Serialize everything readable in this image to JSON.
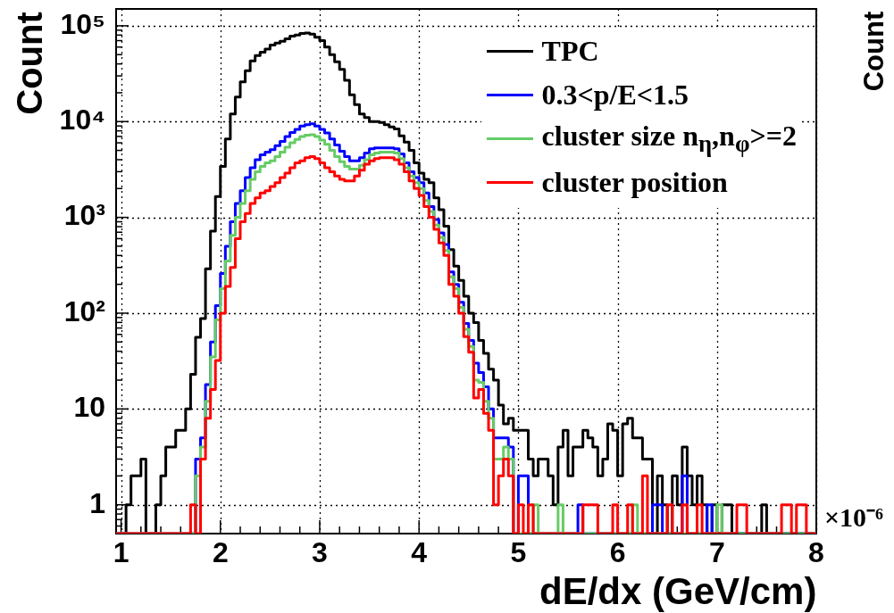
{
  "chart_data": {
    "type": "histogram",
    "xlabel": "dE/dx (GeV/cm)",
    "ylabel": "Count",
    "bins": [
      0.95,
      1.0,
      1.05,
      1.1,
      1.15,
      1.2,
      1.25,
      1.3,
      1.35,
      1.4,
      1.45,
      1.5,
      1.55,
      1.6,
      1.65,
      1.7,
      1.75,
      1.8,
      1.85,
      1.9,
      1.95,
      2.0,
      2.05,
      2.1,
      2.15,
      2.2,
      2.25,
      2.3,
      2.35,
      2.4,
      2.45,
      2.5,
      2.55,
      2.6,
      2.65,
      2.7,
      2.75,
      2.8,
      2.85,
      2.9,
      2.95,
      3.0,
      3.05,
      3.1,
      3.15,
      3.2,
      3.25,
      3.3,
      3.35,
      3.4,
      3.45,
      3.5,
      3.55,
      3.6,
      3.65,
      3.7,
      3.75,
      3.8,
      3.85,
      3.9,
      3.95,
      4.0,
      4.05,
      4.1,
      4.15,
      4.2,
      4.25,
      4.3,
      4.35,
      4.4,
      4.45,
      4.5,
      4.55,
      4.6,
      4.65,
      4.7,
      4.75,
      4.8,
      4.85,
      4.9,
      4.95,
      5.0,
      5.05,
      5.1,
      5.15,
      5.2,
      5.25,
      5.3,
      5.35,
      5.4,
      5.45,
      5.5,
      5.55,
      5.6,
      5.65,
      5.7,
      5.75,
      5.8,
      5.85,
      5.9,
      5.95,
      6.0,
      6.05,
      6.1,
      6.15,
      6.2,
      6.25,
      6.3,
      6.35,
      6.4,
      6.45,
      6.5,
      6.55,
      6.6,
      6.65,
      6.7,
      6.75,
      6.8,
      6.85,
      6.9,
      6.95,
      7.0,
      7.05,
      7.1,
      7.15,
      7.2,
      7.25,
      7.3,
      7.35,
      7.4,
      7.45,
      7.5,
      7.55,
      7.6,
      7.65,
      7.7,
      7.75,
      7.8,
      7.85,
      7.9,
      7.95,
      8.0
    ],
    "series": [
      {
        "name": "TPC",
        "color": "#000000",
        "values": [
          null,
          null,
          1,
          2,
          2,
          3,
          null,
          null,
          1,
          2,
          4,
          4,
          6,
          6,
          10,
          23,
          56,
          88,
          290,
          720,
          1650,
          3400,
          6600,
          12000,
          18000,
          26000,
          34000,
          43000,
          49000,
          53000,
          57000,
          63000,
          66000,
          69000,
          73000,
          78000,
          80000,
          83000,
          84000,
          82000,
          76000,
          70000,
          60000,
          50000,
          42000,
          35000,
          27000,
          19000,
          15000,
          12000,
          11000,
          10000,
          10000,
          9800,
          9300,
          8800,
          8400,
          7100,
          6100,
          5000,
          3700,
          2900,
          2500,
          2300,
          1600,
          1200,
          810,
          460,
          310,
          220,
          150,
          100,
          80,
          52,
          38,
          26,
          20,
          11,
          7,
          8,
          6,
          6,
          6,
          3,
          2,
          3,
          3,
          2,
          1,
          4,
          6,
          2,
          4,
          4,
          6,
          5,
          4,
          2,
          3,
          7,
          6,
          2,
          7,
          8,
          5,
          5,
          3,
          3,
          null,
          2,
          1,
          null,
          2,
          1,
          4,
          2,
          1,
          2,
          1,
          null,
          1,
          null,
          1,
          1,
          null,
          null,
          null,
          null,
          null,
          null,
          1,
          null,
          null,
          null,
          null,
          null,
          null,
          null,
          null,
          null,
          null
        ]
      },
      {
        "name": "0.3<p/E<1.5",
        "color": "#0000ff",
        "values": [
          null,
          null,
          null,
          null,
          null,
          null,
          null,
          null,
          null,
          null,
          null,
          null,
          null,
          null,
          null,
          null,
          3,
          5,
          18,
          50,
          120,
          260,
          500,
          900,
          1400,
          1900,
          2600,
          3300,
          4000,
          4500,
          4800,
          5100,
          5600,
          6200,
          7000,
          7700,
          8300,
          9000,
          9300,
          9500,
          9000,
          8300,
          7600,
          6600,
          5700,
          4900,
          4300,
          3900,
          3900,
          4200,
          4700,
          5200,
          5300,
          5300,
          5300,
          5300,
          5200,
          4600,
          3700,
          3000,
          2600,
          2300,
          1800,
          1300,
          950,
          690,
          520,
          270,
          200,
          130,
          78,
          52,
          30,
          24,
          17,
          10,
          5,
          5,
          5,
          4,
          null,
          2,
          2,
          null,
          null,
          null,
          null,
          null,
          null,
          null,
          null,
          null,
          null,
          1,
          null,
          null,
          null,
          null,
          null,
          null,
          null,
          null,
          null,
          null,
          null,
          null,
          null,
          null,
          1,
          1,
          null,
          null,
          null,
          null,
          2,
          null,
          null,
          null,
          null,
          1,
          null,
          null,
          null,
          null,
          null,
          null,
          null,
          null,
          null,
          null,
          null,
          null,
          null,
          null,
          null,
          null,
          null,
          null,
          null,
          null,
          null
        ]
      },
      {
        "name": "cluster size n$_{η}$,n$_{φ}$>=2",
        "color": "#66cc66",
        "values": [
          null,
          null,
          null,
          null,
          null,
          null,
          null,
          null,
          null,
          null,
          null,
          null,
          null,
          null,
          null,
          null,
          2,
          4,
          12,
          35,
          85,
          180,
          350,
          650,
          1000,
          1400,
          1900,
          2500,
          3000,
          3400,
          3700,
          3900,
          4300,
          4800,
          5400,
          6000,
          6500,
          7000,
          7200,
          7300,
          7000,
          6400,
          5800,
          5000,
          4300,
          3800,
          3400,
          3200,
          3200,
          3500,
          4000,
          4500,
          4700,
          4800,
          4800,
          4800,
          4700,
          4100,
          3300,
          2700,
          2300,
          2000,
          1500,
          1150,
          830,
          620,
          450,
          240,
          180,
          115,
          68,
          45,
          20,
          19,
          12,
          8,
          3,
          3,
          4,
          3,
          null,
          null,
          null,
          null,
          1,
          null,
          null,
          null,
          null,
          1,
          null,
          null,
          null,
          null,
          null,
          null,
          null,
          null,
          null,
          null,
          null,
          null,
          null,
          null,
          1,
          null,
          null,
          null,
          null,
          null,
          null,
          null,
          null,
          null,
          null,
          null,
          null,
          null,
          null,
          null,
          null,
          1,
          null,
          null,
          null,
          null,
          null,
          null,
          null,
          null,
          null,
          null,
          null,
          null,
          null,
          null,
          null,
          null,
          null,
          null,
          null
        ]
      },
      {
        "name": "cluster position",
        "color": "#ff0000",
        "values": [
          null,
          null,
          null,
          null,
          null,
          null,
          null,
          null,
          null,
          null,
          null,
          null,
          null,
          null,
          null,
          1,
          null,
          3,
          8,
          16,
          32,
          100,
          190,
          300,
          600,
          900,
          1100,
          1400,
          1600,
          1800,
          1900,
          2100,
          2300,
          2600,
          2900,
          3300,
          3700,
          3900,
          4200,
          4300,
          4100,
          3700,
          3300,
          3000,
          2700,
          2500,
          2400,
          2400,
          2700,
          3100,
          3600,
          3900,
          4100,
          4200,
          4200,
          4200,
          4000,
          3600,
          3000,
          2400,
          2000,
          1700,
          1300,
          1000,
          750,
          540,
          400,
          200,
          150,
          100,
          57,
          39,
          13,
          16,
          9,
          6,
          1,
          2,
          3,
          2,
          null,
          1,
          null,
          1,
          null,
          null,
          null,
          null,
          null,
          null,
          null,
          null,
          null,
          null,
          1,
          1,
          1,
          null,
          null,
          null,
          1,
          null,
          null,
          1,
          null,
          null,
          2,
          null,
          null,
          null,
          null,
          1,
          null,
          null,
          1,
          null,
          null,
          1,
          null,
          null,
          null,
          null,
          null,
          null,
          null,
          1,
          1,
          null,
          null,
          null,
          null,
          null,
          null,
          null,
          1,
          1,
          null,
          1,
          1,
          null,
          null
        ]
      }
    ],
    "xlim": [
      0.95,
      8.0
    ],
    "ylim": [
      0.5,
      150000
    ],
    "xticks": [
      1,
      {
        "value": 1.2,
        "label": null
      },
      {
        "value": 1.4,
        "label": null
      },
      {
        "value": 1.6,
        "label": null
      },
      {
        "value": 1.8,
        "label": null
      },
      2,
      {
        "value": 2.2,
        "label": null
      },
      {
        "value": 2.4,
        "label": null
      },
      {
        "value": 2.6,
        "label": null
      },
      {
        "value": 2.8,
        "label": null
      },
      3,
      {
        "value": 3.2,
        "label": null
      },
      {
        "value": 3.4,
        "label": null
      },
      {
        "value": 3.6,
        "label": null
      },
      {
        "value": 3.8,
        "label": null
      },
      4,
      {
        "value": 4.2,
        "label": null
      },
      {
        "value": 4.4,
        "label": null
      },
      {
        "value": 4.6,
        "label": null
      },
      {
        "value": 4.8,
        "label": null
      },
      5,
      {
        "value": 5.2,
        "label": null
      },
      {
        "value": 5.4,
        "label": null
      },
      {
        "value": 5.6,
        "label": null
      },
      {
        "value": 5.8,
        "label": null
      },
      6,
      {
        "value": 6.2,
        "label": null
      },
      {
        "value": 6.4,
        "label": null
      },
      {
        "value": 6.6,
        "label": null
      },
      {
        "value": 6.8,
        "label": null
      },
      7,
      {
        "value": 7.2,
        "label": null
      },
      {
        "value": 7.4,
        "label": null
      },
      {
        "value": 7.6,
        "label": null
      },
      {
        "value": 7.8,
        "label": null
      },
      8
    ],
    "yticks": [
      {
        "value": 0.6,
        "label": null
      },
      {
        "value": 0.7,
        "label": null
      },
      {
        "value": 0.8,
        "label": null
      },
      {
        "value": 0.9,
        "label": null
      },
      1,
      {
        "value": 2,
        "label": null
      },
      {
        "value": 3,
        "label": null
      },
      {
        "value": 4,
        "label": null
      },
      {
        "value": 5,
        "label": null
      },
      {
        "value": 6,
        "label": null
      },
      {
        "value": 7,
        "label": null
      },
      {
        "value": 8,
        "label": null
      },
      {
        "value": 9,
        "label": null
      },
      10,
      {
        "value": 20,
        "label": null
      },
      {
        "value": 30,
        "label": null
      },
      {
        "value": 40,
        "label": null
      },
      {
        "value": 50,
        "label": null
      },
      {
        "value": 60,
        "label": null
      },
      {
        "value": 70,
        "label": null
      },
      {
        "value": 80,
        "label": null
      },
      {
        "value": 90,
        "label": null
      },
      {
        "value": 100,
        "label": "10²"
      },
      {
        "value": 200,
        "label": null
      },
      {
        "value": 300,
        "label": null
      },
      {
        "value": 400,
        "label": null
      },
      {
        "value": 500,
        "label": null
      },
      {
        "value": 600,
        "label": null
      },
      {
        "value": 700,
        "label": null
      },
      {
        "value": 800,
        "label": null
      },
      {
        "value": 900,
        "label": null
      },
      {
        "value": 1000,
        "label": "10³"
      },
      {
        "value": 2000,
        "label": null
      },
      {
        "value": 3000,
        "label": null
      },
      {
        "value": 4000,
        "label": null
      },
      {
        "value": 5000,
        "label": null
      },
      {
        "value": 6000,
        "label": null
      },
      {
        "value": 7000,
        "label": null
      },
      {
        "value": 8000,
        "label": null
      },
      {
        "value": 9000,
        "label": null
      },
      {
        "value": 10000,
        "label": "10⁴"
      },
      {
        "value": 20000,
        "label": null
      },
      {
        "value": 30000,
        "label": null
      },
      {
        "value": 40000,
        "label": null
      },
      {
        "value": 50000,
        "label": null
      },
      {
        "value": 60000,
        "label": null
      },
      {
        "value": 70000,
        "label": null
      },
      {
        "value": 80000,
        "label": null
      },
      {
        "value": 90000,
        "label": null
      },
      {
        "value": 100000,
        "label": "10⁵"
      }
    ],
    "log": "y",
    "grid": true,
    "legend": "top right",
    "annotations": [
      "×10⁻⁶",
      "Count"
    ]
  }
}
